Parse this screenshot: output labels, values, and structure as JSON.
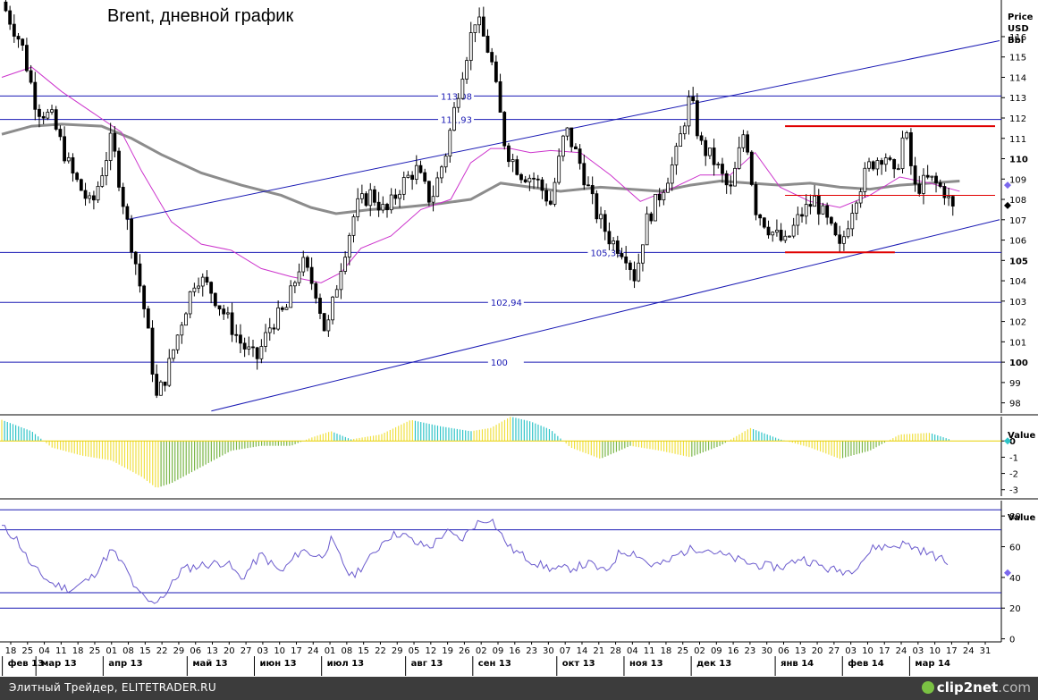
{
  "chart_data": [
    {
      "type": "candlestick",
      "title": "Brent, дневной график",
      "ylabel": "Price USD Bbl",
      "ylabel_lines": [
        "Price",
        "USD",
        "Bbl"
      ],
      "ylim": [
        97.5,
        117.8
      ],
      "yticks": [
        98,
        99,
        100,
        101,
        102,
        103,
        104,
        105,
        106,
        107,
        108,
        109,
        110,
        111,
        112,
        113,
        114,
        115,
        116
      ],
      "bold_yticks": [
        100,
        105,
        110
      ],
      "horizontal_levels": [
        {
          "value": 113.08,
          "label": "113,08",
          "label_pos": 0.44
        },
        {
          "value": 111.93,
          "label": "111,93",
          "label_pos": 0.44
        },
        {
          "value": 105.39,
          "label": "105,39",
          "label_pos": 0.59
        },
        {
          "value": 102.94,
          "label": "102,94",
          "label_pos": 0.49
        },
        {
          "value": 100,
          "label": "100",
          "label_pos": 0.49
        }
      ],
      "channel_lines": [
        {
          "x": [
            0.125,
            1.0
          ],
          "y": [
            107.0,
            115.8
          ]
        },
        {
          "x": [
            0.21,
            1.0
          ],
          "y": [
            97.6,
            107.0
          ]
        }
      ],
      "red_levels": [
        {
          "x": [
            0.785,
            1.0
          ],
          "y": 111.6
        },
        {
          "x": [
            0.785,
            0.895
          ],
          "y": 105.4
        },
        {
          "x": [
            0.785,
            1.0
          ],
          "y": 108.2
        }
      ],
      "ma_slow": [
        [
          0.0,
          111.2
        ],
        [
          0.03,
          111.6
        ],
        [
          0.06,
          111.7
        ],
        [
          0.1,
          111.6
        ],
        [
          0.13,
          111.0
        ],
        [
          0.16,
          110.2
        ],
        [
          0.2,
          109.3
        ],
        [
          0.24,
          108.7
        ],
        [
          0.28,
          108.2
        ],
        [
          0.31,
          107.6
        ],
        [
          0.335,
          107.3
        ],
        [
          0.37,
          107.5
        ],
        [
          0.4,
          107.6
        ],
        [
          0.44,
          107.8
        ],
        [
          0.47,
          108.0
        ],
        [
          0.5,
          108.8
        ],
        [
          0.53,
          108.6
        ],
        [
          0.56,
          108.4
        ],
        [
          0.6,
          108.6
        ],
        [
          0.63,
          108.5
        ],
        [
          0.66,
          108.4
        ],
        [
          0.69,
          108.7
        ],
        [
          0.72,
          108.9
        ],
        [
          0.75,
          108.8
        ],
        [
          0.78,
          108.7
        ],
        [
          0.81,
          108.8
        ],
        [
          0.84,
          108.6
        ],
        [
          0.87,
          108.5
        ],
        [
          0.9,
          108.7
        ],
        [
          0.93,
          108.8
        ],
        [
          0.96,
          108.9
        ]
      ],
      "ma_fast": [
        [
          0.0,
          114.0
        ],
        [
          0.03,
          114.5
        ],
        [
          0.06,
          113.3
        ],
        [
          0.09,
          112.3
        ],
        [
          0.12,
          111.3
        ],
        [
          0.14,
          109.4
        ],
        [
          0.17,
          106.9
        ],
        [
          0.2,
          105.8
        ],
        [
          0.23,
          105.5
        ],
        [
          0.26,
          104.6
        ],
        [
          0.29,
          104.2
        ],
        [
          0.32,
          103.9
        ],
        [
          0.34,
          104.4
        ],
        [
          0.36,
          105.6
        ],
        [
          0.39,
          106.2
        ],
        [
          0.42,
          107.5
        ],
        [
          0.45,
          108.0
        ],
        [
          0.47,
          109.8
        ],
        [
          0.49,
          110.5
        ],
        [
          0.51,
          110.5
        ],
        [
          0.53,
          110.3
        ],
        [
          0.55,
          110.4
        ],
        [
          0.58,
          110.3
        ],
        [
          0.61,
          109.2
        ],
        [
          0.64,
          107.9
        ],
        [
          0.67,
          108.5
        ],
        [
          0.7,
          109.2
        ],
        [
          0.73,
          109.2
        ],
        [
          0.755,
          110.3
        ],
        [
          0.78,
          108.6
        ],
        [
          0.81,
          107.9
        ],
        [
          0.84,
          107.6
        ],
        [
          0.87,
          108.2
        ],
        [
          0.9,
          109.1
        ],
        [
          0.93,
          108.8
        ],
        [
          0.96,
          108.4
        ]
      ],
      "price_path": [
        [
          0.0,
          117.7
        ],
        [
          0.02,
          115.6
        ],
        [
          0.035,
          112.5
        ],
        [
          0.05,
          112.0
        ],
        [
          0.07,
          109.3
        ],
        [
          0.09,
          107.6
        ],
        [
          0.11,
          111.0
        ],
        [
          0.125,
          107.0
        ],
        [
          0.135,
          104.7
        ],
        [
          0.145,
          102.0
        ],
        [
          0.155,
          98.2
        ],
        [
          0.165,
          99.4
        ],
        [
          0.18,
          102.0
        ],
        [
          0.195,
          104.3
        ],
        [
          0.21,
          103.5
        ],
        [
          0.225,
          102.2
        ],
        [
          0.24,
          100.9
        ],
        [
          0.255,
          100.1
        ],
        [
          0.27,
          101.9
        ],
        [
          0.285,
          102.6
        ],
        [
          0.3,
          105.0
        ],
        [
          0.315,
          103.5
        ],
        [
          0.325,
          101.3
        ],
        [
          0.34,
          104.8
        ],
        [
          0.355,
          107.6
        ],
        [
          0.37,
          108.3
        ],
        [
          0.385,
          107.3
        ],
        [
          0.4,
          108.7
        ],
        [
          0.415,
          109.5
        ],
        [
          0.43,
          107.9
        ],
        [
          0.445,
          110.3
        ],
        [
          0.46,
          114.0
        ],
        [
          0.475,
          117.0
        ],
        [
          0.49,
          115.0
        ],
        [
          0.505,
          110.5
        ],
        [
          0.52,
          109.3
        ],
        [
          0.535,
          109.0
        ],
        [
          0.55,
          107.8
        ],
        [
          0.565,
          111.5
        ],
        [
          0.58,
          109.7
        ],
        [
          0.595,
          107.4
        ],
        [
          0.61,
          106.0
        ],
        [
          0.625,
          105.4
        ],
        [
          0.635,
          104.1
        ],
        [
          0.645,
          106.8
        ],
        [
          0.66,
          108.3
        ],
        [
          0.675,
          110.0
        ],
        [
          0.69,
          113.1
        ],
        [
          0.7,
          110.7
        ],
        [
          0.715,
          109.8
        ],
        [
          0.73,
          108.3
        ],
        [
          0.745,
          111.6
        ],
        [
          0.755,
          107.6
        ],
        [
          0.77,
          106.5
        ],
        [
          0.785,
          105.8
        ],
        [
          0.8,
          107.2
        ],
        [
          0.815,
          108.0
        ],
        [
          0.83,
          106.6
        ],
        [
          0.84,
          105.5
        ],
        [
          0.855,
          108.1
        ],
        [
          0.87,
          109.7
        ],
        [
          0.885,
          110.3
        ],
        [
          0.895,
          109.0
        ],
        [
          0.905,
          111.5
        ],
        [
          0.915,
          108.5
        ],
        [
          0.93,
          109.0
        ],
        [
          0.945,
          108.4
        ],
        [
          0.955,
          107.3
        ]
      ],
      "marker_values": {
        "ma_fast_last": 108.7,
        "last_price": 107.7
      }
    },
    {
      "type": "histogram",
      "ylabel": "Value",
      "ylim": [
        -3.4,
        1.5
      ],
      "yticks": [
        0,
        -1,
        -2,
        -3
      ],
      "tick_labels": [
        "0",
        "-1",
        "-2",
        "-3"
      ],
      "values_path": [
        [
          0.0,
          1.3
        ],
        [
          0.03,
          0.6
        ],
        [
          0.05,
          -0.4
        ],
        [
          0.08,
          -0.9
        ],
        [
          0.11,
          -1.2
        ],
        [
          0.14,
          -2.2
        ],
        [
          0.155,
          -2.9
        ],
        [
          0.17,
          -2.6
        ],
        [
          0.2,
          -1.6
        ],
        [
          0.23,
          -0.6
        ],
        [
          0.26,
          -0.3
        ],
        [
          0.29,
          -0.3
        ],
        [
          0.31,
          0.2
        ],
        [
          0.33,
          0.6
        ],
        [
          0.35,
          0.1
        ],
        [
          0.38,
          0.4
        ],
        [
          0.41,
          1.3
        ],
        [
          0.44,
          0.9
        ],
        [
          0.47,
          0.6
        ],
        [
          0.49,
          0.8
        ],
        [
          0.51,
          1.5
        ],
        [
          0.53,
          1.2
        ],
        [
          0.55,
          0.7
        ],
        [
          0.57,
          -0.4
        ],
        [
          0.6,
          -1.1
        ],
        [
          0.63,
          -0.3
        ],
        [
          0.66,
          -0.6
        ],
        [
          0.69,
          -1.0
        ],
        [
          0.72,
          -0.3
        ],
        [
          0.75,
          0.8
        ],
        [
          0.78,
          0.1
        ],
        [
          0.81,
          -0.4
        ],
        [
          0.84,
          -1.1
        ],
        [
          0.87,
          -0.6
        ],
        [
          0.9,
          0.4
        ],
        [
          0.93,
          0.5
        ],
        [
          0.95,
          0.1
        ]
      ]
    },
    {
      "type": "line",
      "ylabel": "Value",
      "ylim": [
        -2,
        90
      ],
      "yticks": [
        0,
        20,
        40,
        60,
        80
      ],
      "tick_labels": [
        "0",
        "20",
        "40",
        "60",
        "80"
      ],
      "levels": [
        84,
        71,
        30,
        20
      ],
      "values_path": [
        [
          0.0,
          73
        ],
        [
          0.015,
          65
        ],
        [
          0.03,
          47
        ],
        [
          0.05,
          36
        ],
        [
          0.07,
          32
        ],
        [
          0.09,
          40
        ],
        [
          0.11,
          58
        ],
        [
          0.125,
          45
        ],
        [
          0.135,
          31
        ],
        [
          0.15,
          23
        ],
        [
          0.165,
          30
        ],
        [
          0.18,
          45
        ],
        [
          0.2,
          48
        ],
        [
          0.225,
          50
        ],
        [
          0.24,
          39
        ],
        [
          0.26,
          55
        ],
        [
          0.28,
          43
        ],
        [
          0.3,
          58
        ],
        [
          0.32,
          53
        ],
        [
          0.33,
          64
        ],
        [
          0.34,
          52
        ],
        [
          0.35,
          40
        ],
        [
          0.37,
          53
        ],
        [
          0.385,
          66
        ],
        [
          0.4,
          69
        ],
        [
          0.415,
          62
        ],
        [
          0.43,
          60
        ],
        [
          0.445,
          70
        ],
        [
          0.46,
          64
        ],
        [
          0.475,
          75
        ],
        [
          0.49,
          79
        ],
        [
          0.5,
          68
        ],
        [
          0.51,
          59
        ],
        [
          0.525,
          53
        ],
        [
          0.54,
          48
        ],
        [
          0.555,
          45
        ],
        [
          0.57,
          46
        ],
        [
          0.59,
          49
        ],
        [
          0.605,
          43
        ],
        [
          0.62,
          57
        ],
        [
          0.635,
          56
        ],
        [
          0.65,
          48
        ],
        [
          0.665,
          49
        ],
        [
          0.68,
          56
        ],
        [
          0.695,
          59
        ],
        [
          0.705,
          59
        ],
        [
          0.72,
          55
        ],
        [
          0.735,
          52
        ],
        [
          0.75,
          49
        ],
        [
          0.77,
          47
        ],
        [
          0.785,
          47
        ],
        [
          0.8,
          53
        ],
        [
          0.815,
          49
        ],
        [
          0.83,
          45
        ],
        [
          0.85,
          44
        ],
        [
          0.865,
          53
        ],
        [
          0.875,
          60
        ],
        [
          0.89,
          60
        ],
        [
          0.905,
          62
        ],
        [
          0.92,
          58
        ],
        [
          0.935,
          54
        ],
        [
          0.95,
          49
        ]
      ],
      "marker_value": 43
    }
  ],
  "x_axis": {
    "day_labels": [
      "18",
      "25",
      "04",
      "11",
      "18",
      "25",
      "01",
      "08",
      "15",
      "22",
      "29",
      "06",
      "13",
      "20",
      "27",
      "03",
      "10",
      "17",
      "24",
      "01",
      "08",
      "15",
      "22",
      "29",
      "05",
      "12",
      "19",
      "26",
      "02",
      "09",
      "16",
      "23",
      "30",
      "07",
      "14",
      "21",
      "28",
      "04",
      "11",
      "18",
      "25",
      "02",
      "09",
      "16",
      "23",
      "30",
      "06",
      "13",
      "20",
      "27",
      "03",
      "10",
      "17",
      "24",
      "03",
      "10",
      "17",
      "24",
      "31"
    ],
    "month_labels": [
      {
        "label": "фев 13",
        "start": 0
      },
      {
        "label": "мар 13",
        "start": 2
      },
      {
        "label": "апр 13",
        "start": 6
      },
      {
        "label": "май 13",
        "start": 11
      },
      {
        "label": "июн 13",
        "start": 15
      },
      {
        "label": "июл 13",
        "start": 19
      },
      {
        "label": "авг 13",
        "start": 24
      },
      {
        "label": "сен 13",
        "start": 28
      },
      {
        "label": "окт 13",
        "start": 33
      },
      {
        "label": "ноя 13",
        "start": 37
      },
      {
        "label": "дек 13",
        "start": 41
      },
      {
        "label": "янв 14",
        "start": 46
      },
      {
        "label": "фев 14",
        "start": 50
      },
      {
        "label": "мар 14",
        "start": 54
      }
    ]
  },
  "colors": {
    "candle": "#000000",
    "level_line": "#1a1ab4",
    "channel_line": "#1a1ab4",
    "red_level": "#e00000",
    "ma_slow": "#8c8c8c",
    "ma_fast": "#cc33cc",
    "hist_up": "#f0e040",
    "hist_down": "#2ec4c8",
    "hist_alt": "#7ab648",
    "rsi_line": "#6a5acd",
    "rsi_level": "#1a1ab4",
    "marker_diamond": "#7b68ee"
  },
  "footer": {
    "text": "Элитный Трейдер, ELITETRADER.RU",
    "logo_prefix": "clip2",
    "logo_suffix": "net",
    "logo_domain": ".com"
  }
}
